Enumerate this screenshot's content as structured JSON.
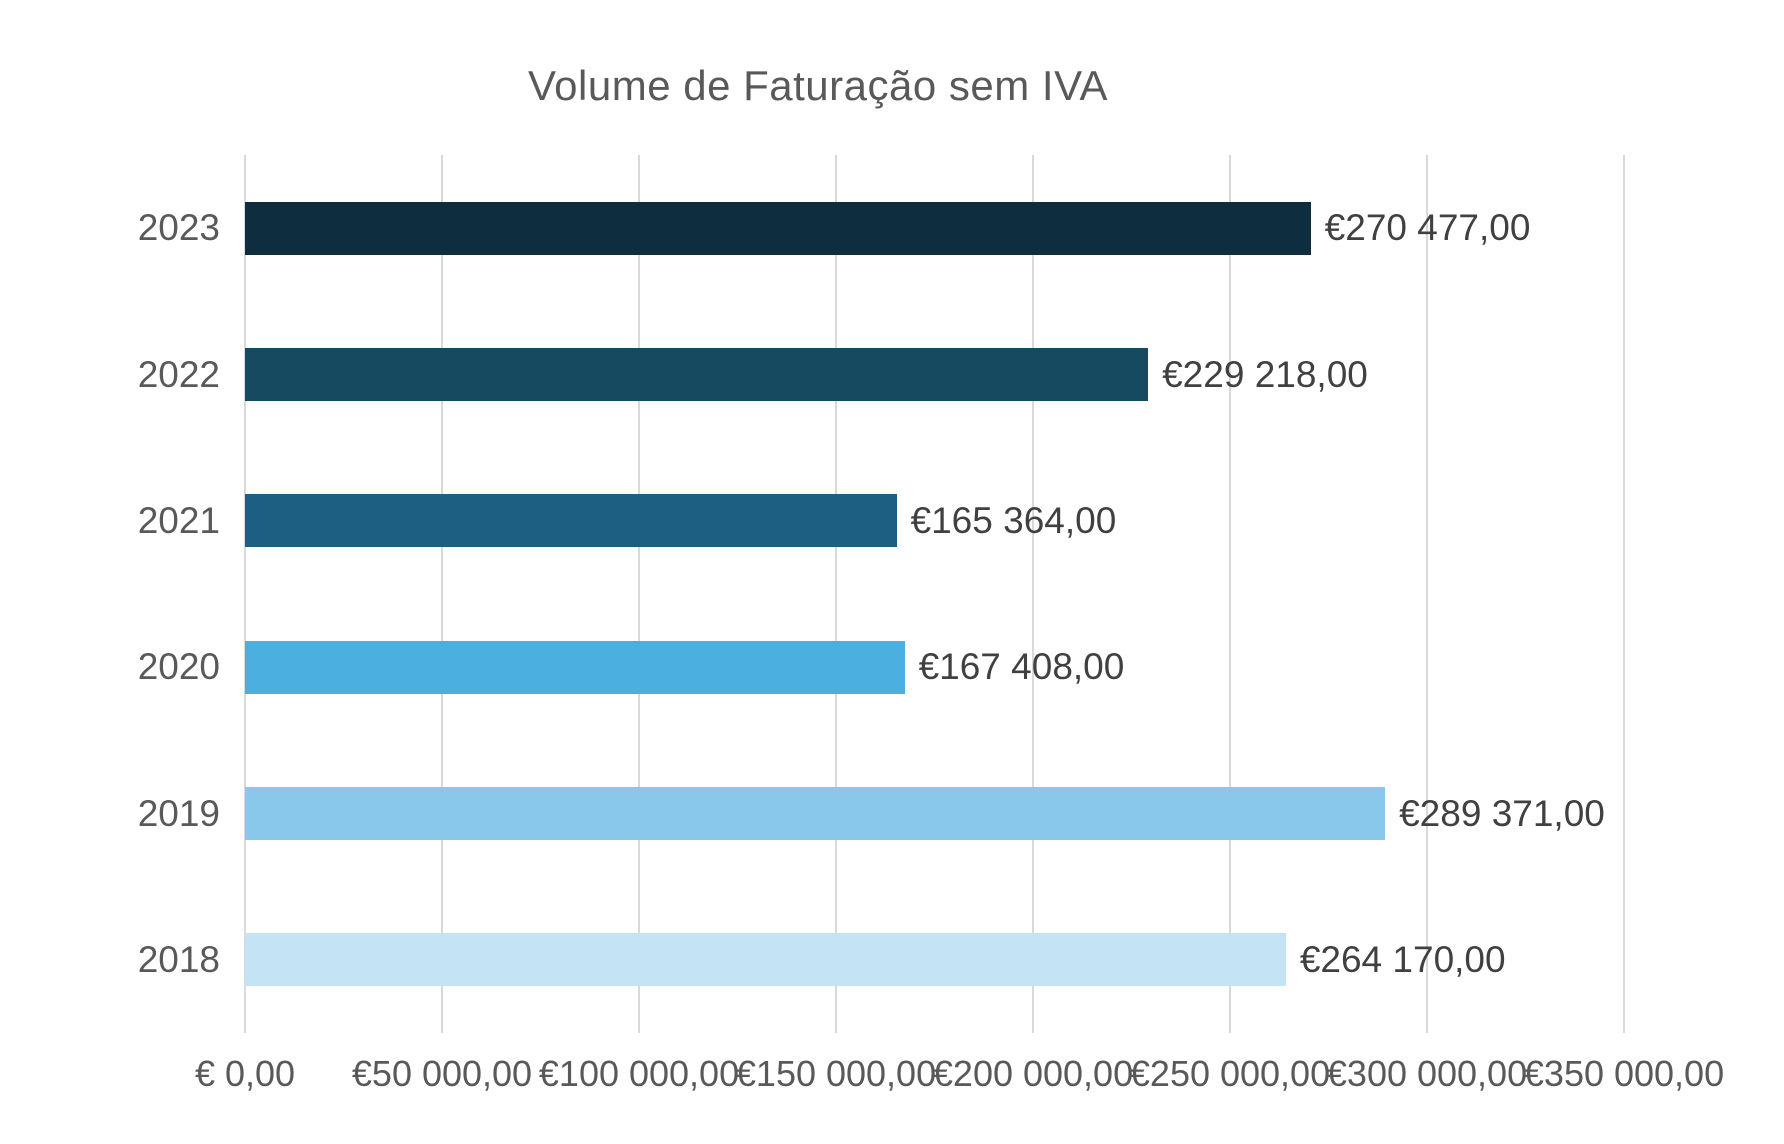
{
  "chart_data": {
    "type": "bar",
    "orientation": "horizontal",
    "title": "Volume de Faturação sem IVA",
    "categories": [
      "2023",
      "2022",
      "2021",
      "2020",
      "2019",
      "2018"
    ],
    "values": [
      270477,
      229218,
      165364,
      167408,
      289371,
      264170
    ],
    "value_labels": [
      "€270 477,00",
      "€229 218,00",
      "€165 364,00",
      "€167 408,00",
      "€289 371,00",
      "€264 170,00"
    ],
    "bar_colors": [
      "#0E2D3E",
      "#164A61",
      "#1D5F82",
      "#4BAFDF",
      "#89C8EB",
      "#C4E4F5"
    ],
    "x_ticks": [
      0,
      50000,
      100000,
      150000,
      200000,
      250000,
      300000,
      350000
    ],
    "x_tick_labels": [
      "€ 0,00",
      "€50 000,00",
      "€100 000,00",
      "€150 000,00",
      "€200 000,00",
      "€250 000,00",
      "€300 000,00",
      "€350 000,00"
    ],
    "xlim": [
      0,
      350000
    ],
    "xlabel": "",
    "ylabel": "",
    "grid": true,
    "legend": false,
    "colors": {
      "title_text": "#595959",
      "axis_tick_text": "#595959",
      "data_label_text": "#404040",
      "gridline": "#D9D9D9",
      "background": "#FFFFFF"
    }
  }
}
